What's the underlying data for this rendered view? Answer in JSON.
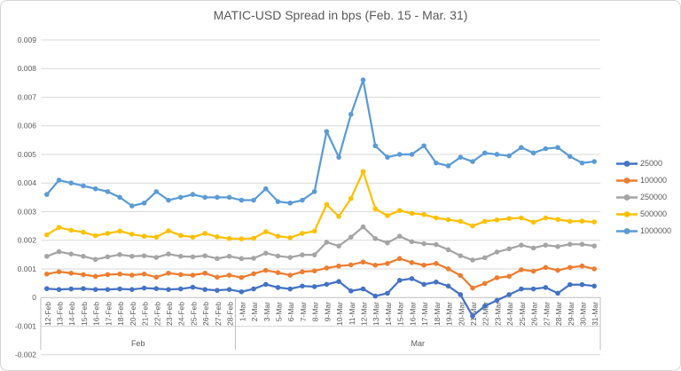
{
  "chart_data": {
    "type": "line",
    "title": "MATIC-USD Spread in bps (Feb. 15 - Mar. 31)",
    "legend_position": "right",
    "grid": true,
    "y_axis": {
      "min": -0.002,
      "max": 0.009,
      "tick_step": 0.001,
      "ticks": [
        {
          "value": 0.009,
          "label": "0.009"
        },
        {
          "value": 0.008,
          "label": "0.008"
        },
        {
          "value": 0.007,
          "label": "0.007"
        },
        {
          "value": 0.006,
          "label": "0.006"
        },
        {
          "value": 0.005,
          "label": "0.005"
        },
        {
          "value": 0.004,
          "label": "0.004"
        },
        {
          "value": 0.003,
          "label": "0.003"
        },
        {
          "value": 0.002,
          "label": "0.002"
        },
        {
          "value": 0.001,
          "label": "0.001"
        },
        {
          "value": 0,
          "label": "0"
        },
        {
          "value": -0.001,
          "label": "-0.001"
        },
        {
          "value": -0.002,
          "label": "-0.002"
        }
      ]
    },
    "x_axis": {
      "groups": [
        {
          "label": "Feb",
          "start": 0,
          "end": 15
        },
        {
          "label": "Mar",
          "start": 16,
          "end": 45
        }
      ]
    },
    "categories": [
      "12-Feb",
      "13-Feb",
      "14-Feb",
      "15-Feb",
      "16-Feb",
      "17-Feb",
      "18-Feb",
      "20-Feb",
      "21-Feb",
      "22-Feb",
      "23-Feb",
      "24-Feb",
      "25-Feb",
      "26-Feb",
      "27-Feb",
      "28-Feb",
      "1-Mar",
      "2-Mar",
      "3-Mar",
      "5-Mar",
      "6-Mar",
      "7-Mar",
      "8-Mar",
      "9-Mar",
      "10-Mar",
      "11-Mar",
      "12-Mar",
      "13-Mar",
      "14-Mar",
      "15-Mar",
      "16-Mar",
      "17-Mar",
      "18-Mar",
      "19-Mar",
      "20-Mar",
      "21-Mar",
      "22-Mar",
      "23-Mar",
      "24-Mar",
      "25-Mar",
      "26-Mar",
      "27-Mar",
      "28-Mar",
      "29-Mar",
      "30-Mar",
      "31-Mar"
    ],
    "series": [
      {
        "name": "25000",
        "color": "#4472C4",
        "values": [
          0.00031,
          0.00028,
          0.0003,
          0.00031,
          0.00028,
          0.00028,
          0.0003,
          0.00028,
          0.00033,
          0.00031,
          0.00028,
          0.0003,
          0.00036,
          0.00028,
          0.00025,
          0.00028,
          0.0002,
          0.0003,
          0.00046,
          0.00035,
          0.0003,
          0.0004,
          0.00038,
          0.00046,
          0.00056,
          0.00023,
          0.0003,
          5e-05,
          0.00015,
          0.0006,
          0.00066,
          0.00046,
          0.00054,
          0.0004,
          0.0001,
          -0.00065,
          -0.0003,
          -0.0001,
          0.0001,
          0.0003,
          0.0003,
          0.00035,
          0.00015,
          0.00045,
          0.00045,
          0.0004
        ]
      },
      {
        "name": "100000",
        "color": "#ED7D31",
        "values": [
          0.00082,
          0.0009,
          0.00085,
          0.0008,
          0.00074,
          0.0008,
          0.00082,
          0.00078,
          0.00082,
          0.00071,
          0.00085,
          0.0008,
          0.00078,
          0.00085,
          0.00071,
          0.00078,
          0.0007,
          0.00083,
          0.00095,
          0.00087,
          0.00078,
          0.0009,
          0.00093,
          0.00103,
          0.0011,
          0.00114,
          0.00124,
          0.00113,
          0.00119,
          0.00136,
          0.00122,
          0.00113,
          0.00119,
          0.001,
          0.00077,
          0.00033,
          0.00049,
          0.00069,
          0.00074,
          0.00097,
          0.00092,
          0.00105,
          0.00095,
          0.00105,
          0.0011,
          0.001
        ]
      },
      {
        "name": "250000",
        "color": "#A5A5A5",
        "values": [
          0.00144,
          0.0016,
          0.00152,
          0.00144,
          0.00133,
          0.00142,
          0.0015,
          0.00144,
          0.00146,
          0.0014,
          0.00152,
          0.00144,
          0.00142,
          0.00146,
          0.00136,
          0.00144,
          0.00136,
          0.00137,
          0.00155,
          0.00145,
          0.0014,
          0.00149,
          0.00149,
          0.00193,
          0.0018,
          0.00211,
          0.00247,
          0.00206,
          0.00191,
          0.00214,
          0.00195,
          0.00188,
          0.00185,
          0.00167,
          0.00146,
          0.00131,
          0.00139,
          0.00159,
          0.0017,
          0.00183,
          0.00173,
          0.00183,
          0.00178,
          0.00186,
          0.00186,
          0.0018
        ]
      },
      {
        "name": "500000",
        "color": "#FFC000",
        "values": [
          0.00219,
          0.00245,
          0.00235,
          0.00228,
          0.00216,
          0.00224,
          0.00232,
          0.00221,
          0.00214,
          0.00211,
          0.00233,
          0.00217,
          0.00211,
          0.00224,
          0.00212,
          0.00206,
          0.00205,
          0.00207,
          0.0023,
          0.00214,
          0.00209,
          0.00224,
          0.00232,
          0.00325,
          0.00283,
          0.00346,
          0.0044,
          0.0031,
          0.00286,
          0.00304,
          0.00294,
          0.0029,
          0.00278,
          0.00272,
          0.00266,
          0.0025,
          0.00266,
          0.00271,
          0.00276,
          0.00278,
          0.00263,
          0.00278,
          0.00273,
          0.00266,
          0.00267,
          0.00264
        ]
      },
      {
        "name": "1000000",
        "color": "#5B9BD5",
        "values": [
          0.0036,
          0.0041,
          0.004,
          0.0039,
          0.0038,
          0.0037,
          0.0035,
          0.0032,
          0.0033,
          0.0037,
          0.0034,
          0.0035,
          0.0036,
          0.0035,
          0.0035,
          0.0035,
          0.0034,
          0.0034,
          0.0038,
          0.00335,
          0.0033,
          0.0034,
          0.0037,
          0.0058,
          0.0049,
          0.0064,
          0.0076,
          0.0053,
          0.0049,
          0.005,
          0.005,
          0.0053,
          0.0047,
          0.0046,
          0.0049,
          0.00475,
          0.00505,
          0.005,
          0.00495,
          0.00524,
          0.00505,
          0.0052,
          0.00524,
          0.00493,
          0.0047,
          0.00475
        ]
      }
    ]
  }
}
